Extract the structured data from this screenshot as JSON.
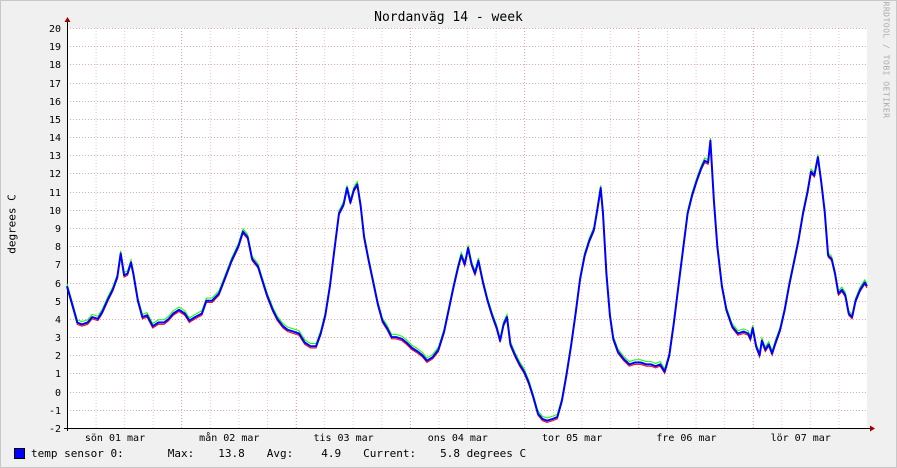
{
  "chart_data": {
    "type": "line",
    "title": "Nordanväg 14 - week",
    "ylabel": "degrees C",
    "xlabel": "",
    "ylim": [
      -2,
      20
    ],
    "yticks": [
      "-2",
      "-1",
      "0",
      "1",
      "2",
      "3",
      "4",
      "5",
      "6",
      "7",
      "8",
      "9",
      "10",
      "11",
      "12",
      "13",
      "14",
      "15",
      "16",
      "17",
      "18",
      "19",
      "20"
    ],
    "xticks": [
      "sön 01 mar",
      "mån 02 mar",
      "tis 03 mar",
      "ons 04 mar",
      "tor 05 mar",
      "fre 06 mar",
      "lör 07 mar"
    ],
    "grid": true,
    "x_unit": "days since start of graph (week view, ~7 days)",
    "series": [
      {
        "name": "temp sensor 0",
        "color": "#0000ff",
        "max_color": "#00ff00",
        "min_color": "#ff0000",
        "points": [
          [
            0.0,
            5.8
          ],
          [
            0.05,
            4.7
          ],
          [
            0.09,
            3.8
          ],
          [
            0.13,
            3.7
          ],
          [
            0.18,
            3.8
          ],
          [
            0.22,
            4.1
          ],
          [
            0.27,
            4.0
          ],
          [
            0.31,
            4.4
          ],
          [
            0.36,
            5.1
          ],
          [
            0.4,
            5.6
          ],
          [
            0.44,
            6.3
          ],
          [
            0.47,
            7.6
          ],
          [
            0.5,
            6.4
          ],
          [
            0.53,
            6.5
          ],
          [
            0.56,
            7.1
          ],
          [
            0.58,
            6.5
          ],
          [
            0.62,
            5.0
          ],
          [
            0.66,
            4.1
          ],
          [
            0.7,
            4.2
          ],
          [
            0.75,
            3.6
          ],
          [
            0.8,
            3.8
          ],
          [
            0.85,
            3.8
          ],
          [
            0.89,
            4.0
          ],
          [
            0.93,
            4.3
          ],
          [
            0.98,
            4.5
          ],
          [
            1.03,
            4.3
          ],
          [
            1.07,
            3.9
          ],
          [
            1.12,
            4.1
          ],
          [
            1.18,
            4.3
          ],
          [
            1.22,
            5.0
          ],
          [
            1.27,
            5.0
          ],
          [
            1.33,
            5.4
          ],
          [
            1.38,
            6.2
          ],
          [
            1.44,
            7.2
          ],
          [
            1.5,
            8.0
          ],
          [
            1.54,
            8.8
          ],
          [
            1.58,
            8.5
          ],
          [
            1.62,
            7.3
          ],
          [
            1.67,
            6.9
          ],
          [
            1.71,
            6.1
          ],
          [
            1.75,
            5.3
          ],
          [
            1.8,
            4.5
          ],
          [
            1.84,
            4.0
          ],
          [
            1.89,
            3.6
          ],
          [
            1.93,
            3.4
          ],
          [
            1.98,
            3.3
          ],
          [
            2.03,
            3.2
          ],
          [
            2.08,
            2.7
          ],
          [
            2.13,
            2.5
          ],
          [
            2.18,
            2.5
          ],
          [
            2.22,
            3.2
          ],
          [
            2.26,
            4.2
          ],
          [
            2.3,
            5.8
          ],
          [
            2.34,
            7.8
          ],
          [
            2.38,
            9.8
          ],
          [
            2.42,
            10.3
          ],
          [
            2.45,
            11.2
          ],
          [
            2.48,
            10.4
          ],
          [
            2.51,
            11.1
          ],
          [
            2.54,
            11.4
          ],
          [
            2.57,
            10.2
          ],
          [
            2.6,
            8.5
          ],
          [
            2.64,
            7.2
          ],
          [
            2.68,
            6.0
          ],
          [
            2.72,
            4.8
          ],
          [
            2.76,
            3.9
          ],
          [
            2.8,
            3.5
          ],
          [
            2.84,
            3.0
          ],
          [
            2.88,
            3.0
          ],
          [
            2.93,
            2.9
          ],
          [
            2.97,
            2.7
          ],
          [
            3.02,
            2.4
          ],
          [
            3.07,
            2.2
          ],
          [
            3.11,
            2.0
          ],
          [
            3.15,
            1.7
          ],
          [
            3.2,
            1.9
          ],
          [
            3.25,
            2.3
          ],
          [
            3.3,
            3.3
          ],
          [
            3.34,
            4.5
          ],
          [
            3.38,
            5.7
          ],
          [
            3.42,
            6.8
          ],
          [
            3.45,
            7.5
          ],
          [
            3.48,
            7.0
          ],
          [
            3.51,
            7.9
          ],
          [
            3.54,
            7.0
          ],
          [
            3.57,
            6.5
          ],
          [
            3.6,
            7.2
          ],
          [
            3.64,
            6.0
          ],
          [
            3.68,
            5.0
          ],
          [
            3.72,
            4.2
          ],
          [
            3.76,
            3.5
          ],
          [
            3.79,
            2.8
          ],
          [
            3.82,
            3.7
          ],
          [
            3.85,
            4.1
          ],
          [
            3.88,
            2.6
          ],
          [
            3.92,
            2.0
          ],
          [
            3.96,
            1.5
          ],
          [
            4.0,
            1.1
          ],
          [
            4.04,
            0.5
          ],
          [
            4.08,
            -0.3
          ],
          [
            4.12,
            -1.2
          ],
          [
            4.16,
            -1.5
          ],
          [
            4.2,
            -1.6
          ],
          [
            4.25,
            -1.5
          ],
          [
            4.29,
            -1.4
          ],
          [
            4.33,
            -0.5
          ],
          [
            4.37,
            0.9
          ],
          [
            4.41,
            2.5
          ],
          [
            4.45,
            4.3
          ],
          [
            4.49,
            6.2
          ],
          [
            4.53,
            7.5
          ],
          [
            4.57,
            8.3
          ],
          [
            4.61,
            8.9
          ],
          [
            4.64,
            10.0
          ],
          [
            4.67,
            11.2
          ],
          [
            4.69,
            9.8
          ],
          [
            4.72,
            6.5
          ],
          [
            4.75,
            4.2
          ],
          [
            4.78,
            2.9
          ],
          [
            4.82,
            2.2
          ],
          [
            4.87,
            1.8
          ],
          [
            4.92,
            1.5
          ],
          [
            4.97,
            1.6
          ],
          [
            5.02,
            1.6
          ],
          [
            5.07,
            1.5
          ],
          [
            5.11,
            1.5
          ],
          [
            5.15,
            1.4
          ],
          [
            5.19,
            1.5
          ],
          [
            5.23,
            1.1
          ],
          [
            5.27,
            2.0
          ],
          [
            5.31,
            3.8
          ],
          [
            5.35,
            5.8
          ],
          [
            5.39,
            7.8
          ],
          [
            5.43,
            9.8
          ],
          [
            5.47,
            10.8
          ],
          [
            5.51,
            11.6
          ],
          [
            5.55,
            12.3
          ],
          [
            5.58,
            12.7
          ],
          [
            5.61,
            12.6
          ],
          [
            5.63,
            13.8
          ],
          [
            5.66,
            10.5
          ],
          [
            5.69,
            8.0
          ],
          [
            5.73,
            5.8
          ],
          [
            5.77,
            4.5
          ],
          [
            5.82,
            3.6
          ],
          [
            5.87,
            3.2
          ],
          [
            5.92,
            3.3
          ],
          [
            5.96,
            3.2
          ],
          [
            5.98,
            2.9
          ],
          [
            6.0,
            3.5
          ],
          [
            6.03,
            2.5
          ],
          [
            6.06,
            2.0
          ],
          [
            6.08,
            2.8
          ],
          [
            6.11,
            2.3
          ],
          [
            6.14,
            2.6
          ],
          [
            6.17,
            2.1
          ],
          [
            6.2,
            2.7
          ],
          [
            6.24,
            3.4
          ],
          [
            6.28,
            4.5
          ],
          [
            6.32,
            5.9
          ],
          [
            6.36,
            7.1
          ],
          [
            6.4,
            8.3
          ],
          [
            6.44,
            9.8
          ],
          [
            6.48,
            11.0
          ],
          [
            6.51,
            12.1
          ],
          [
            6.54,
            11.9
          ],
          [
            6.57,
            12.9
          ],
          [
            6.6,
            11.5
          ],
          [
            6.63,
            9.9
          ],
          [
            6.66,
            7.5
          ],
          [
            6.69,
            7.3
          ],
          [
            6.72,
            6.5
          ],
          [
            6.75,
            5.4
          ],
          [
            6.78,
            5.6
          ],
          [
            6.81,
            5.3
          ],
          [
            6.84,
            4.3
          ],
          [
            6.87,
            4.1
          ],
          [
            6.9,
            5.0
          ],
          [
            6.94,
            5.6
          ],
          [
            6.98,
            6.0
          ],
          [
            7.0,
            5.8
          ]
        ]
      }
    ]
  },
  "legend": {
    "series_label": "temp sensor 0:",
    "max_label": "Max:",
    "max_value": "13.8",
    "avg_label": "Avg:",
    "avg_value": "4.9",
    "current_label": "Current:",
    "current_value": "5.8 degrees C"
  },
  "watermark": "RRDTOOL / TOBI OETIKER"
}
